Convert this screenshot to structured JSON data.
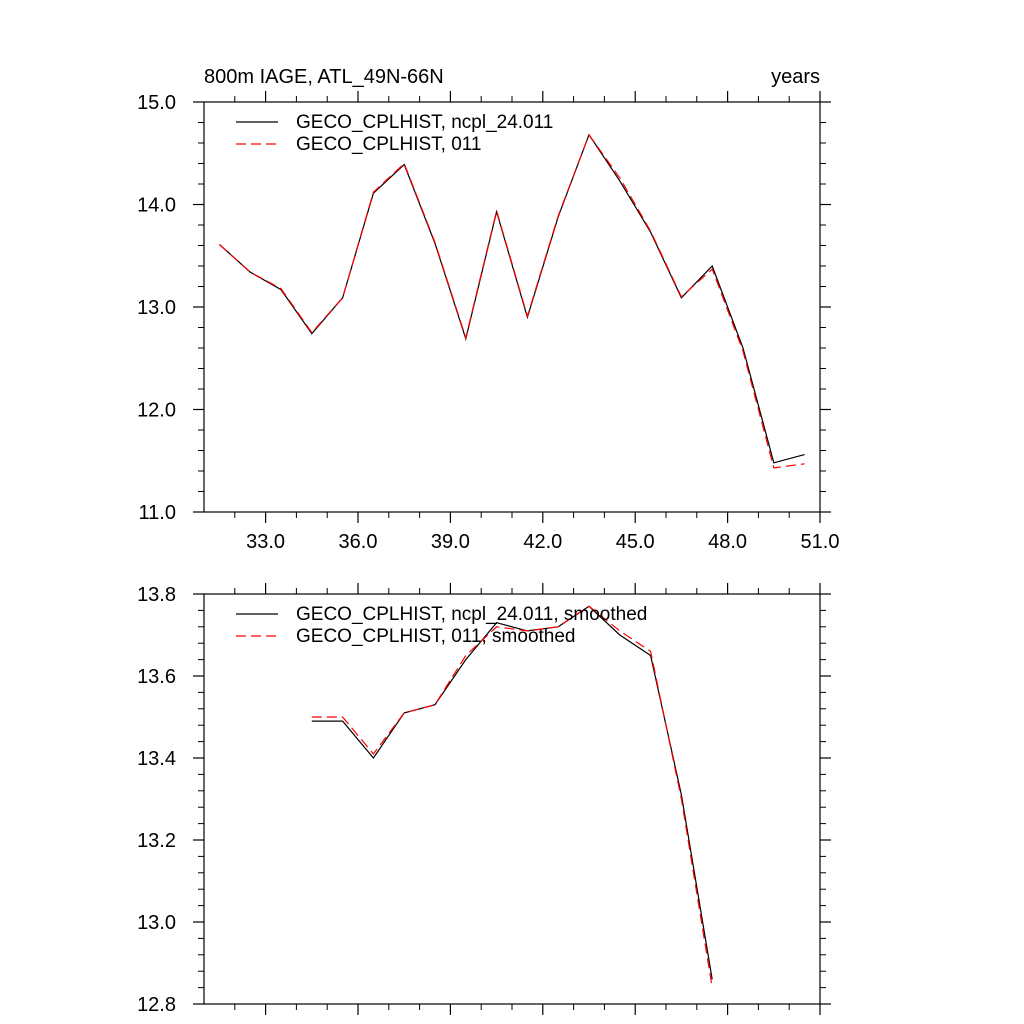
{
  "chart_data": [
    {
      "type": "line",
      "title": "800m IAGE, ATL_49N-66N",
      "units": "years",
      "xlim": [
        31.0,
        51.0
      ],
      "ylim": [
        11.0,
        15.0
      ],
      "xticks": [
        33.0,
        36.0,
        39.0,
        42.0,
        45.0,
        48.0,
        51.0
      ],
      "xtick_labels": [
        "33.0",
        "36.0",
        "39.0",
        "42.0",
        "45.0",
        "48.0",
        "51.0"
      ],
      "yticks": [
        11.0,
        12.0,
        13.0,
        14.0,
        15.0
      ],
      "ytick_labels": [
        "11.0",
        "12.0",
        "13.0",
        "14.0",
        "15.0"
      ],
      "legend": "top-left",
      "series": [
        {
          "name": "GECO_CPLHIST, ncpl_24.011",
          "color": "#000000",
          "style": "solid",
          "x": [
            31.5,
            32.5,
            33.5,
            34.5,
            35.5,
            36.5,
            37.5,
            38.5,
            39.5,
            40.5,
            41.5,
            42.5,
            43.5,
            44.5,
            45.5,
            46.5,
            47.5,
            48.5,
            49.5,
            50.5
          ],
          "y": [
            13.61,
            13.34,
            13.17,
            12.74,
            13.09,
            14.11,
            14.39,
            13.62,
            12.69,
            13.93,
            12.9,
            13.88,
            14.68,
            14.23,
            13.73,
            13.09,
            13.4,
            12.6,
            11.48,
            11.56
          ]
        },
        {
          "name": "GECO_CPLHIST, 011",
          "color": "#ff0000",
          "style": "dashed",
          "x": [
            31.5,
            32.5,
            33.5,
            34.5,
            35.5,
            36.5,
            37.5,
            38.5,
            39.5,
            40.5,
            41.5,
            42.5,
            43.5,
            44.5,
            45.5,
            46.5,
            47.5,
            48.5,
            49.5,
            50.5
          ],
          "y": [
            13.61,
            13.34,
            13.18,
            12.75,
            13.09,
            14.12,
            14.4,
            13.63,
            12.7,
            13.94,
            12.91,
            13.89,
            14.68,
            14.26,
            13.74,
            13.1,
            13.37,
            12.57,
            11.43,
            11.47
          ]
        }
      ]
    },
    {
      "type": "line",
      "xlim": [
        31.0,
        51.0
      ],
      "ylim": [
        12.8,
        13.8
      ],
      "xticks": [
        33.0,
        36.0,
        39.0,
        42.0,
        45.0,
        48.0,
        51.0
      ],
      "yticks": [
        12.8,
        13.0,
        13.2,
        13.4,
        13.6,
        13.8
      ],
      "ytick_labels": [
        "12.8",
        "13.0",
        "13.2",
        "13.4",
        "13.6",
        "13.8"
      ],
      "legend": "top-left",
      "series": [
        {
          "name": "GECO_CPLHIST, ncpl_24.011, smoothed",
          "color": "#000000",
          "style": "solid",
          "x": [
            34.5,
            35.5,
            36.5,
            37.5,
            38.5,
            39.5,
            40.5,
            41.5,
            42.5,
            43.5,
            44.5,
            45.5,
            46.5,
            47.5
          ],
          "y": [
            13.49,
            13.49,
            13.4,
            13.51,
            13.53,
            13.64,
            13.73,
            13.71,
            13.72,
            13.77,
            13.7,
            13.65,
            13.31,
            12.86
          ]
        },
        {
          "name": "GECO_CPLHIST, 011, smoothed",
          "color": "#ff0000",
          "style": "dashed",
          "x": [
            34.5,
            35.5,
            36.5,
            37.5,
            38.5,
            39.5,
            40.5,
            41.5,
            42.5,
            43.5,
            44.5,
            45.5,
            46.5,
            47.5
          ],
          "y": [
            13.5,
            13.5,
            13.41,
            13.51,
            13.53,
            13.65,
            13.72,
            13.71,
            13.72,
            13.77,
            13.71,
            13.66,
            13.3,
            12.84
          ]
        }
      ]
    }
  ]
}
